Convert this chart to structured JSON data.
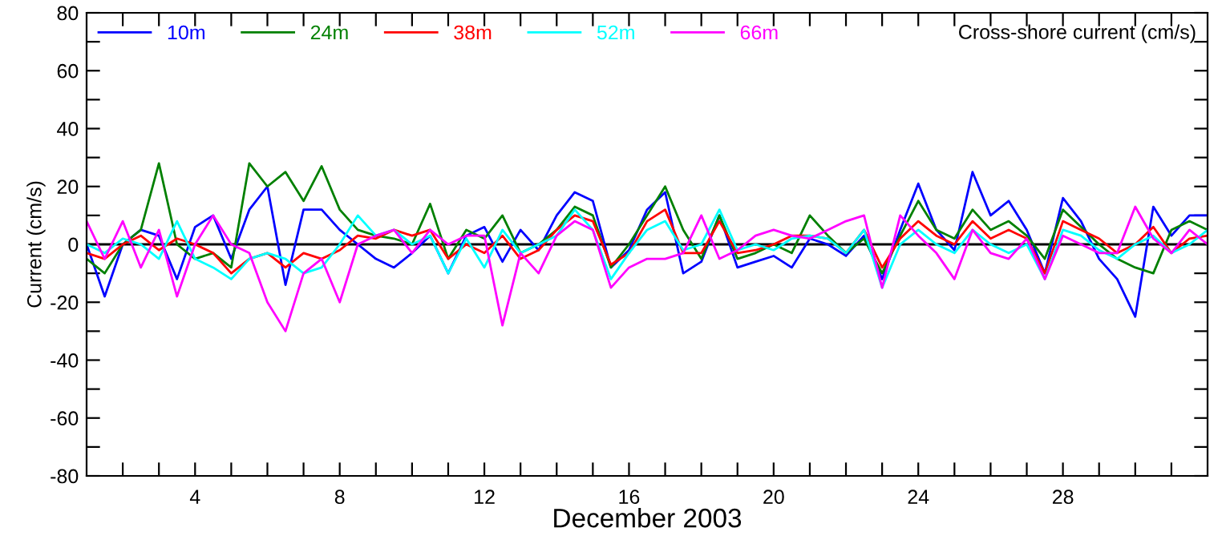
{
  "chart_data": {
    "type": "line",
    "xlabel": "December 2003",
    "ylabel": "Current (cm/s)",
    "annotations": [
      "Cross-shore current (cm/s)"
    ],
    "x": [
      1.0,
      1.5,
      2.0,
      2.5,
      3.0,
      3.5,
      4.0,
      4.5,
      5.0,
      5.5,
      6.0,
      6.5,
      7.0,
      7.5,
      8.0,
      8.5,
      9.0,
      9.5,
      10.0,
      10.5,
      11.0,
      11.5,
      12.0,
      12.5,
      13.0,
      13.5,
      14.0,
      14.5,
      15.0,
      15.5,
      16.0,
      16.5,
      17.0,
      17.5,
      18.0,
      18.5,
      19.0,
      19.5,
      20.0,
      20.5,
      21.0,
      21.5,
      22.0,
      22.5,
      23.0,
      23.5,
      24.0,
      24.5,
      25.0,
      25.5,
      26.0,
      26.5,
      27.0,
      27.5,
      28.0,
      28.5,
      29.0,
      29.5,
      30.0,
      30.5,
      31.0,
      31.5,
      32.0
    ],
    "series": [
      {
        "name": "10m",
        "color": "#0000ff",
        "values": [
          0,
          -18,
          0,
          5,
          3,
          -12,
          6,
          10,
          -5,
          12,
          20,
          -14,
          12,
          12,
          5,
          0,
          -5,
          -8,
          -3,
          3,
          -10,
          3,
          6,
          -6,
          5,
          -2,
          10,
          18,
          15,
          -8,
          -2,
          12,
          18,
          -10,
          -6,
          10,
          -8,
          -6,
          -4,
          -8,
          2,
          0,
          -4,
          3,
          -12,
          5,
          21,
          5,
          -2,
          25,
          10,
          15,
          5,
          -10,
          16,
          8,
          -5,
          -12,
          -25,
          13,
          3,
          10,
          10
        ]
      },
      {
        "name": "24m",
        "color": "#008000",
        "values": [
          -5,
          -10,
          0,
          5,
          28,
          0,
          -5,
          -3,
          -8,
          28,
          20,
          25,
          15,
          27,
          12,
          5,
          3,
          2,
          0,
          14,
          -5,
          5,
          2,
          10,
          -3,
          0,
          5,
          13,
          10,
          -8,
          0,
          10,
          20,
          5,
          -5,
          10,
          -5,
          -3,
          0,
          -3,
          10,
          3,
          -3,
          2,
          -10,
          3,
          15,
          5,
          2,
          12,
          5,
          8,
          3,
          -5,
          12,
          6,
          0,
          -5,
          -8,
          -10,
          5,
          8,
          5
        ]
      },
      {
        "name": "38m",
        "color": "#ff0000",
        "values": [
          -3,
          -5,
          0,
          3,
          -2,
          2,
          0,
          -3,
          -10,
          -5,
          -3,
          -8,
          -3,
          -5,
          -2,
          3,
          2,
          5,
          3,
          5,
          -5,
          0,
          -3,
          3,
          -5,
          -2,
          5,
          10,
          8,
          -7,
          -3,
          8,
          12,
          -3,
          -3,
          8,
          -3,
          -2,
          0,
          3,
          3,
          2,
          -3,
          5,
          -8,
          2,
          8,
          3,
          0,
          8,
          2,
          5,
          2,
          -10,
          8,
          5,
          2,
          -3,
          0,
          6,
          -3,
          2,
          3
        ]
      },
      {
        "name": "52m",
        "color": "#00ffff",
        "values": [
          0,
          -3,
          2,
          0,
          -5,
          8,
          -5,
          -8,
          -12,
          -5,
          -3,
          -5,
          -10,
          -8,
          0,
          10,
          3,
          5,
          0,
          3,
          -10,
          2,
          -8,
          5,
          -3,
          0,
          3,
          12,
          5,
          -12,
          -3,
          5,
          8,
          -2,
          0,
          12,
          -2,
          0,
          -2,
          2,
          3,
          2,
          -3,
          5,
          -15,
          0,
          5,
          0,
          -3,
          5,
          0,
          -3,
          0,
          -12,
          5,
          3,
          -2,
          -5,
          0,
          3,
          -3,
          0,
          5
        ]
      },
      {
        "name": "66m",
        "color": "#ff00ff",
        "values": [
          8,
          -5,
          8,
          -8,
          5,
          -18,
          0,
          10,
          0,
          -3,
          -20,
          -30,
          -10,
          -5,
          -20,
          0,
          3,
          5,
          -3,
          5,
          0,
          3,
          3,
          -28,
          -3,
          -10,
          3,
          8,
          5,
          -15,
          -8,
          -5,
          -5,
          -3,
          10,
          -5,
          -2,
          3,
          5,
          3,
          2,
          5,
          8,
          10,
          -15,
          10,
          3,
          -3,
          -12,
          5,
          -3,
          -5,
          2,
          -12,
          3,
          0,
          -3,
          -3,
          13,
          2,
          -3,
          5,
          0
        ]
      }
    ],
    "xlim": [
      1,
      32
    ],
    "xticks": [
      {
        "value": 2,
        "label": null
      },
      {
        "value": 3,
        "label": null
      },
      4,
      {
        "value": 5,
        "label": null
      },
      {
        "value": 6,
        "label": null
      },
      {
        "value": 7,
        "label": null
      },
      8,
      {
        "value": 9,
        "label": null
      },
      {
        "value": 10,
        "label": null
      },
      {
        "value": 11,
        "label": null
      },
      12,
      {
        "value": 13,
        "label": null
      },
      {
        "value": 14,
        "label": null
      },
      {
        "value": 15,
        "label": null
      },
      16,
      {
        "value": 17,
        "label": null
      },
      {
        "value": 18,
        "label": null
      },
      {
        "value": 19,
        "label": null
      },
      20,
      {
        "value": 21,
        "label": null
      },
      {
        "value": 22,
        "label": null
      },
      {
        "value": 23,
        "label": null
      },
      24,
      {
        "value": 25,
        "label": null
      },
      {
        "value": 26,
        "label": null
      },
      {
        "value": 27,
        "label": null
      },
      28,
      {
        "value": 29,
        "label": null
      },
      {
        "value": 30,
        "label": null
      },
      {
        "value": 31,
        "label": null
      }
    ],
    "ylim": [
      -80,
      80
    ],
    "yticks": [
      -80,
      {
        "value": -70,
        "label": null
      },
      -60,
      {
        "value": -50,
        "label": null
      },
      -40,
      {
        "value": -30,
        "label": null
      },
      -20,
      {
        "value": -10,
        "label": null
      },
      0,
      {
        "value": 10,
        "label": null
      },
      20,
      {
        "value": 30,
        "label": null
      },
      40,
      {
        "value": 50,
        "label": null
      },
      60,
      {
        "value": 70,
        "label": null
      },
      80
    ],
    "ref_lines": [
      {
        "axis": "y",
        "value": 0,
        "color": "#000000",
        "line_style": "solid"
      }
    ],
    "grid": false,
    "legend": "top left",
    "marker": "none",
    "line_style": "solid"
  }
}
